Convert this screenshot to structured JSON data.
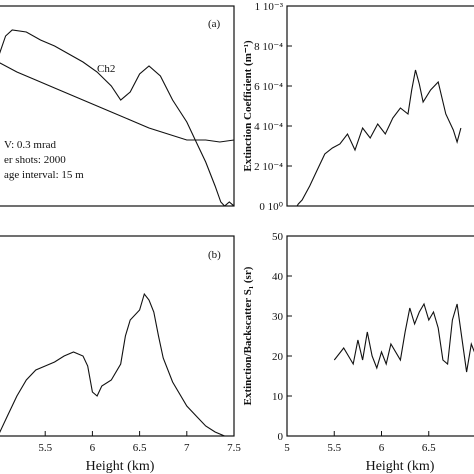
{
  "chart_data": [
    {
      "id": "a",
      "type": "line",
      "panel_label": "(a)",
      "xlim": [
        5.0,
        7.5
      ],
      "annotations": [
        "V: 0.3 mrad",
        "er shots: 2000",
        "age interval: 15 m"
      ],
      "series": [
        {
          "name": "Ch2",
          "x": [
            5.0,
            5.08,
            5.15,
            5.3,
            5.45,
            5.6,
            5.75,
            5.9,
            6.05,
            6.2,
            6.3,
            6.4,
            6.5,
            6.6,
            6.72,
            6.85,
            7.0,
            7.1,
            7.2,
            7.3,
            7.36,
            7.4,
            7.45,
            7.5
          ],
          "y": [
            0.74,
            0.85,
            0.88,
            0.87,
            0.83,
            0.8,
            0.76,
            0.72,
            0.67,
            0.6,
            0.53,
            0.57,
            0.66,
            0.7,
            0.65,
            0.53,
            0.42,
            0.32,
            0.22,
            0.1,
            0.02,
            0.0,
            0.02,
            0.0
          ]
        },
        {
          "name": "",
          "x": [
            5.0,
            5.2,
            5.4,
            5.6,
            5.8,
            6.0,
            6.2,
            6.4,
            6.6,
            6.8,
            7.0,
            7.2,
            7.35,
            7.5
          ],
          "y": [
            0.72,
            0.67,
            0.63,
            0.59,
            0.55,
            0.51,
            0.47,
            0.43,
            0.39,
            0.36,
            0.33,
            0.33,
            0.32,
            0.33
          ]
        }
      ]
    },
    {
      "id": "ext",
      "type": "line",
      "ylabel": "Extinction  Coefficient  (m⁻¹)",
      "xlim": [
        5.0,
        7.5
      ],
      "ylim": [
        0,
        0.001
      ],
      "yticks": [
        {
          "value": 0,
          "label": "0 10⁰"
        },
        {
          "value": 0.0002,
          "label": "2 10⁻⁴"
        },
        {
          "value": 0.0004,
          "label": "4 10⁻⁴"
        },
        {
          "value": 0.0006,
          "label": "6 10⁻⁴"
        },
        {
          "value": 0.0008,
          "label": "8 10⁻⁴"
        },
        {
          "value": 0.001,
          "label": "1 10⁻³"
        }
      ],
      "series": [
        {
          "name": "",
          "x": [
            5.1,
            5.15,
            5.2,
            5.3,
            5.4,
            5.5,
            5.6,
            5.7,
            5.8,
            5.9,
            6.0,
            6.1,
            6.2,
            6.3,
            6.4,
            6.5,
            6.6,
            6.65,
            6.7,
            6.75,
            6.8,
            6.9,
            7.0,
            7.1,
            7.2,
            7.25,
            7.3
          ],
          "y": [
            -2e-05,
            1e-05,
            3e-05,
            0.0001,
            0.00018,
            0.00026,
            0.00029,
            0.00031,
            0.00036,
            0.00028,
            0.00039,
            0.00034,
            0.00041,
            0.00036,
            0.00044,
            0.00049,
            0.00046,
            0.00058,
            0.00068,
            0.00061,
            0.00052,
            0.00058,
            0.00062,
            0.00046,
            0.00038,
            0.00032,
            0.00039
          ]
        }
      ]
    },
    {
      "id": "b",
      "type": "line",
      "panel_label": "(b)",
      "xlabel": "Height (km)",
      "xlim": [
        5.0,
        7.5
      ],
      "xticks": [
        5.5,
        6,
        6.5,
        7,
        7.5
      ],
      "series": [
        {
          "name": "",
          "x": [
            5.0,
            5.1,
            5.2,
            5.3,
            5.4,
            5.5,
            5.6,
            5.7,
            5.8,
            5.9,
            5.95,
            6.0,
            6.05,
            6.1,
            6.2,
            6.3,
            6.35,
            6.4,
            6.5,
            6.55,
            6.6,
            6.65,
            6.7,
            6.75,
            6.85,
            7.0,
            7.1,
            7.2,
            7.3,
            7.4,
            7.5
          ],
          "y": [
            0.0,
            0.1,
            0.2,
            0.28,
            0.33,
            0.35,
            0.37,
            0.4,
            0.42,
            0.4,
            0.35,
            0.22,
            0.2,
            0.25,
            0.28,
            0.36,
            0.5,
            0.58,
            0.63,
            0.71,
            0.68,
            0.62,
            0.5,
            0.39,
            0.27,
            0.15,
            0.1,
            0.05,
            0.02,
            0.0,
            0.0
          ]
        }
      ]
    },
    {
      "id": "s1",
      "type": "line",
      "ylabel": "Extinction/Backscatter  S₁  (sr)",
      "xlabel": "Height (km)",
      "xlim": [
        5.0,
        7.0
      ],
      "ylim": [
        0,
        50
      ],
      "xticks": [
        5,
        5.5,
        6,
        6.5
      ],
      "yticks": [
        0,
        10,
        20,
        30,
        40,
        50
      ],
      "series": [
        {
          "name": "",
          "x": [
            5.5,
            5.6,
            5.7,
            5.75,
            5.8,
            5.85,
            5.9,
            5.95,
            6.0,
            6.05,
            6.1,
            6.2,
            6.25,
            6.3,
            6.35,
            6.4,
            6.45,
            6.5,
            6.55,
            6.6,
            6.65,
            6.7,
            6.75,
            6.8,
            6.9,
            6.95,
            7.0
          ],
          "y": [
            19,
            22,
            18,
            24,
            19,
            26,
            20,
            17,
            21,
            18,
            23,
            19,
            26,
            32,
            28,
            31,
            33,
            29,
            31,
            27,
            19,
            18,
            29,
            33,
            16,
            23,
            20
          ]
        }
      ]
    }
  ]
}
